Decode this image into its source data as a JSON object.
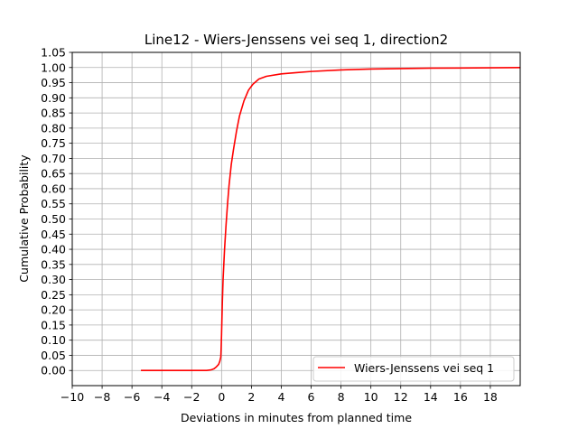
{
  "chart_data": {
    "type": "line",
    "title": "Line12 - Wiers-Jenssens vei seq 1, direction2",
    "xlabel": "Deviations in minutes from planned time",
    "ylabel": "Cumulative Probability",
    "xlim": [
      -10,
      20
    ],
    "ylim": [
      -0.05,
      1.05
    ],
    "x_ticks": [
      -10,
      -8,
      -6,
      -4,
      -2,
      0,
      2,
      4,
      6,
      8,
      10,
      12,
      14,
      16,
      18
    ],
    "x_tick_labels": [
      "−10",
      "−8",
      "−6",
      "−4",
      "−2",
      "0",
      "2",
      "4",
      "6",
      "8",
      "10",
      "12",
      "14",
      "16",
      "18"
    ],
    "y_ticks": [
      0,
      0.05,
      0.1,
      0.15,
      0.2,
      0.25,
      0.3,
      0.35,
      0.4,
      0.45,
      0.5,
      0.55,
      0.6,
      0.65,
      0.7,
      0.75,
      0.8,
      0.85,
      0.9,
      0.95,
      1.0,
      1.05
    ],
    "y_tick_labels": [
      "0.00",
      "0.05",
      "0.10",
      "0.15",
      "0.20",
      "0.25",
      "0.30",
      "0.35",
      "0.40",
      "0.45",
      "0.50",
      "0.55",
      "0.60",
      "0.65",
      "0.70",
      "0.75",
      "0.80",
      "0.85",
      "0.90",
      "0.95",
      "1.00",
      "1.05"
    ],
    "grid": true,
    "legend_position": "lower-right",
    "series": [
      {
        "name": "Wiers-Jenssens vei seq 1",
        "color": "#ff0000",
        "points": [
          [
            -5.4,
            0.0
          ],
          [
            -3.0,
            0.0
          ],
          [
            -1.0,
            0.0
          ],
          [
            -0.7,
            0.002
          ],
          [
            -0.5,
            0.006
          ],
          [
            -0.35,
            0.012
          ],
          [
            -0.2,
            0.02
          ],
          [
            -0.12,
            0.03
          ],
          [
            -0.05,
            0.045
          ],
          [
            -0.03,
            0.07
          ],
          [
            0.0,
            0.12
          ],
          [
            0.05,
            0.22
          ],
          [
            0.1,
            0.3
          ],
          [
            0.2,
            0.4
          ],
          [
            0.3,
            0.48
          ],
          [
            0.4,
            0.55
          ],
          [
            0.5,
            0.61
          ],
          [
            0.65,
            0.68
          ],
          [
            0.8,
            0.73
          ],
          [
            1.0,
            0.79
          ],
          [
            1.2,
            0.84
          ],
          [
            1.5,
            0.89
          ],
          [
            1.8,
            0.925
          ],
          [
            2.1,
            0.945
          ],
          [
            2.5,
            0.962
          ],
          [
            3.0,
            0.971
          ],
          [
            4.0,
            0.979
          ],
          [
            5.0,
            0.983
          ],
          [
            6.0,
            0.987
          ],
          [
            8.0,
            0.992
          ],
          [
            10.0,
            0.995
          ],
          [
            14.0,
            0.998
          ],
          [
            18.0,
            0.999
          ],
          [
            20.0,
            1.0
          ]
        ]
      }
    ]
  }
}
